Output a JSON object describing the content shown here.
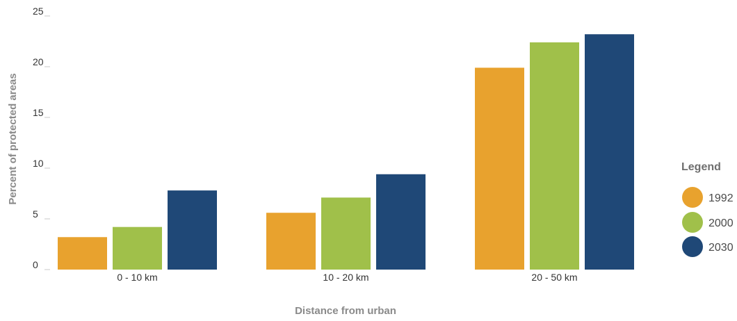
{
  "chart_data": {
    "type": "bar",
    "title": "",
    "xlabel": "Distance from urban",
    "ylabel": "Percent of protected areas",
    "ylim": [
      0,
      25
    ],
    "yticks": [
      0,
      5,
      10,
      15,
      20,
      25
    ],
    "categories": [
      "0 - 10 km",
      "10 - 20 km",
      "20 - 50 km"
    ],
    "series": [
      {
        "name": "1992",
        "color": "#e8a22e",
        "values": [
          3.2,
          5.6,
          19.9
        ]
      },
      {
        "name": "2000",
        "color": "#a0c04a",
        "values": [
          4.2,
          7.1,
          22.4
        ]
      },
      {
        "name": "2030",
        "color": "#1f4877",
        "values": [
          7.8,
          9.4,
          23.2
        ]
      }
    ],
    "legend": {
      "title": "Legend",
      "position": "right"
    },
    "grid": false
  }
}
